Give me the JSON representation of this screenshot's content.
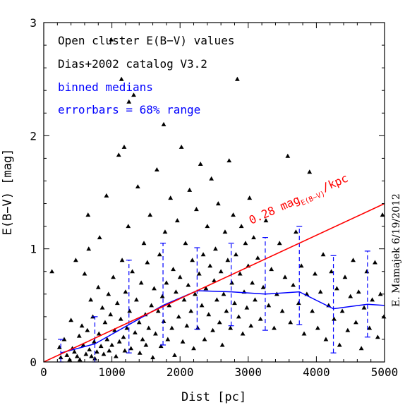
{
  "chart_data": {
    "type": "scatter",
    "xlabel": "Dist [pc]",
    "ylabel": "E(B−V) [mag]",
    "xlim": [
      0,
      5000
    ],
    "ylim": [
      0,
      3
    ],
    "xticks": [
      "0",
      "1000",
      "2000",
      "3000",
      "4000",
      "5000"
    ],
    "yticks": [
      "0",
      "1",
      "2",
      "3"
    ],
    "grid": false,
    "annotations": {
      "line1": "Open cluster E(B−V) values",
      "line2": "Dias+2002 catalog V3.2",
      "line3": "binned medians",
      "line4": "errorbars = 68% range",
      "fit_label_main": "0.28 mag",
      "fit_label_sub": "E(B−V)",
      "fit_label_tail": "/kpc",
      "credit": "E. Mamajek 6/19/2012"
    },
    "colors": {
      "points": "#000000",
      "medians": "#0000ff",
      "fit": "#ff0000",
      "annotation_blue": "#0000ff"
    },
    "fit_line": {
      "slope_mag_per_kpc": 0.28,
      "x": [
        0,
        5000
      ],
      "y": [
        0,
        1.4
      ]
    },
    "binned_medians": {
      "x": [
        250,
        750,
        1250,
        1750,
        2250,
        2750,
        3250,
        3750,
        4250,
        4750,
        5000
      ],
      "y": [
        0.08,
        0.16,
        0.33,
        0.5,
        0.63,
        0.62,
        0.6,
        0.62,
        0.47,
        0.51,
        0.5
      ],
      "err_low": [
        0.0,
        0.0,
        0.08,
        0.15,
        0.29,
        0.32,
        0.28,
        0.33,
        0.08,
        0.22,
        null
      ],
      "err_high": [
        0.2,
        0.4,
        0.9,
        1.05,
        1.01,
        1.05,
        1.1,
        1.2,
        0.94,
        0.98,
        null
      ]
    },
    "series": [
      {
        "name": "",
        "marker": "triangle",
        "points": [
          [
            120,
            0.8
          ],
          [
            230,
            0.13
          ],
          [
            250,
            0.04
          ],
          [
            300,
            0.2
          ],
          [
            340,
            0.06
          ],
          [
            380,
            0.02
          ],
          [
            400,
            0.37
          ],
          [
            420,
            0.12
          ],
          [
            450,
            0.09
          ],
          [
            470,
            0.9
          ],
          [
            490,
            0.05
          ],
          [
            520,
            0.23
          ],
          [
            530,
            0.02
          ],
          [
            560,
            0.32
          ],
          [
            580,
            0.15
          ],
          [
            600,
            0.78
          ],
          [
            620,
            0.07
          ],
          [
            640,
            0.28
          ],
          [
            660,
            1.0
          ],
          [
            670,
            0.11
          ],
          [
            690,
            0.55
          ],
          [
            700,
            0.05
          ],
          [
            720,
            0.4
          ],
          [
            740,
            0.18
          ],
          [
            750,
            0.03
          ],
          [
            780,
            0.09
          ],
          [
            800,
            0.66
          ],
          [
            810,
            0.25
          ],
          [
            820,
            1.1
          ],
          [
            840,
            0.14
          ],
          [
            860,
            0.48
          ],
          [
            880,
            0.07
          ],
          [
            900,
            0.35
          ],
          [
            920,
            1.47
          ],
          [
            930,
            0.2
          ],
          [
            950,
            0.6
          ],
          [
            960,
            0.1
          ],
          [
            980,
            0.42
          ],
          [
            1000,
            0.15
          ],
          [
            1020,
            0.75
          ],
          [
            1040,
            0.28
          ],
          [
            1060,
            0.05
          ],
          [
            1080,
            0.52
          ],
          [
            1100,
            1.83
          ],
          [
            1110,
            0.18
          ],
          [
            1130,
            0.38
          ],
          [
            1150,
            0.9
          ],
          [
            1170,
            0.22
          ],
          [
            1190,
            0.1
          ],
          [
            1200,
            0.62
          ],
          [
            1220,
            0.3
          ],
          [
            1240,
            1.2
          ],
          [
            1260,
            0.45
          ],
          [
            1280,
            0.12
          ],
          [
            1300,
            0.8
          ],
          [
            1320,
            2.36
          ],
          [
            1340,
            0.26
          ],
          [
            1360,
            0.55
          ],
          [
            1380,
            1.55
          ],
          [
            1400,
            0.35
          ],
          [
            1410,
            0.08
          ],
          [
            1430,
            0.7
          ],
          [
            1450,
            0.2
          ],
          [
            1470,
            1.05
          ],
          [
            1490,
            0.42
          ],
          [
            1500,
            0.15
          ],
          [
            1520,
            0.88
          ],
          [
            1540,
            0.3
          ],
          [
            1560,
            1.3
          ],
          [
            1580,
            0.5
          ],
          [
            1600,
            0.04
          ],
          [
            1620,
            0.65
          ],
          [
            1640,
            0.25
          ],
          [
            1660,
            1.7
          ],
          [
            1680,
            0.45
          ],
          [
            1700,
            0.95
          ],
          [
            1720,
            0.14
          ],
          [
            1740,
            0.58
          ],
          [
            1760,
            0.36
          ],
          [
            1780,
            1.15
          ],
          [
            1800,
            0.7
          ],
          [
            1820,
            0.2
          ],
          [
            1840,
            0.5
          ],
          [
            1860,
            1.45
          ],
          [
            1880,
            0.3
          ],
          [
            1900,
            0.82
          ],
          [
            1920,
            0.06
          ],
          [
            1940,
            0.62
          ],
          [
            1960,
            1.25
          ],
          [
            1980,
            0.4
          ],
          [
            2000,
            0.75
          ],
          [
            2020,
            1.9
          ],
          [
            2040,
            0.18
          ],
          [
            2060,
            0.55
          ],
          [
            2080,
            1.05
          ],
          [
            2100,
            0.32
          ],
          [
            2120,
            0.68
          ],
          [
            2140,
            1.52
          ],
          [
            2160,
            0.45
          ],
          [
            2180,
            0.9
          ],
          [
            2200,
            0.12
          ],
          [
            2220,
            0.6
          ],
          [
            2240,
            1.35
          ],
          [
            2260,
            0.3
          ],
          [
            2280,
            0.78
          ],
          [
            2300,
            1.75
          ],
          [
            2320,
            0.5
          ],
          [
            2340,
            0.95
          ],
          [
            2360,
            0.2
          ],
          [
            2380,
            0.65
          ],
          [
            2400,
            1.2
          ],
          [
            2420,
            0.42
          ],
          [
            2440,
            0.85
          ],
          [
            2460,
            1.62
          ],
          [
            2480,
            0.28
          ],
          [
            2500,
            0.72
          ],
          [
            2520,
            1.0
          ],
          [
            2540,
            0.55
          ],
          [
            2560,
            1.4
          ],
          [
            2580,
            0.35
          ],
          [
            2600,
            0.8
          ],
          [
            2620,
            0.15
          ],
          [
            2640,
            0.6
          ],
          [
            2660,
            1.15
          ],
          [
            2680,
            0.45
          ],
          [
            2700,
            0.9
          ],
          [
            2720,
            1.78
          ],
          [
            2740,
            0.3
          ],
          [
            2760,
            0.7
          ],
          [
            2780,
            1.3
          ],
          [
            2800,
            0.52
          ],
          [
            2820,
            0.95
          ],
          [
            2840,
            2.5
          ],
          [
            2860,
            0.4
          ],
          [
            2880,
            0.78
          ],
          [
            2900,
            1.2
          ],
          [
            2920,
            0.25
          ],
          [
            2940,
            0.62
          ],
          [
            2960,
            1.05
          ],
          [
            2980,
            0.48
          ],
          [
            3000,
            0.85
          ],
          [
            3020,
            1.45
          ],
          [
            3040,
            0.32
          ],
          [
            3060,
            0.7
          ],
          [
            3080,
            1.1
          ],
          [
            3100,
            0.55
          ],
          [
            3140,
            0.92
          ],
          [
            3180,
            0.38
          ],
          [
            3220,
            0.66
          ],
          [
            3260,
            1.25
          ],
          [
            3300,
            0.5
          ],
          [
            3340,
            0.82
          ],
          [
            3380,
            0.3
          ],
          [
            3420,
            0.6
          ],
          [
            3460,
            1.05
          ],
          [
            3500,
            0.45
          ],
          [
            3540,
            0.75
          ],
          [
            3580,
            1.82
          ],
          [
            3620,
            0.35
          ],
          [
            3660,
            0.68
          ],
          [
            3700,
            1.15
          ],
          [
            3740,
            0.52
          ],
          [
            3780,
            0.85
          ],
          [
            3820,
            0.25
          ],
          [
            3860,
            0.6
          ],
          [
            3900,
            1.68
          ],
          [
            3940,
            0.45
          ],
          [
            3980,
            0.78
          ],
          [
            4020,
            0.3
          ],
          [
            4060,
            0.62
          ],
          [
            4100,
            0.95
          ],
          [
            4140,
            0.2
          ],
          [
            4180,
            0.5
          ],
          [
            4220,
            0.8
          ],
          [
            4260,
            0.38
          ],
          [
            4300,
            0.65
          ],
          [
            4340,
            0.15
          ],
          [
            4380,
            0.45
          ],
          [
            4420,
            0.75
          ],
          [
            4460,
            0.28
          ],
          [
            4500,
            0.58
          ],
          [
            4540,
            0.9
          ],
          [
            4580,
            0.35
          ],
          [
            4620,
            0.62
          ],
          [
            4660,
            0.12
          ],
          [
            4700,
            0.48
          ],
          [
            4740,
            0.8
          ],
          [
            4780,
            0.3
          ],
          [
            4820,
            0.55
          ],
          [
            4860,
            0.88
          ],
          [
            4900,
            0.22
          ],
          [
            4940,
            0.6
          ],
          [
            4970,
            1.3
          ],
          [
            4990,
            0.4
          ],
          [
            1250,
            2.3
          ],
          [
            1140,
            2.5
          ],
          [
            990,
            2.85
          ],
          [
            1180,
            1.9
          ],
          [
            1760,
            2.1
          ],
          [
            650,
            1.3
          ]
        ]
      }
    ]
  }
}
